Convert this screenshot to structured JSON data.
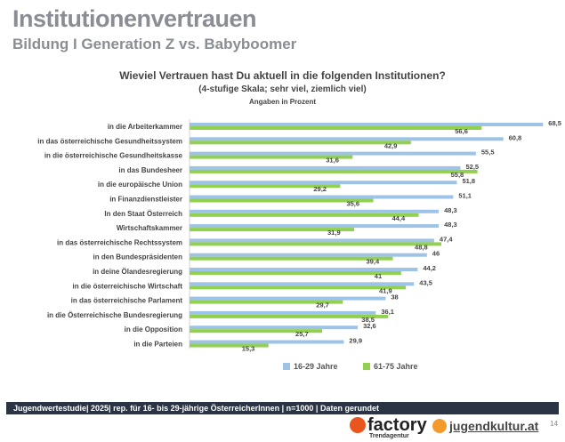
{
  "header": {
    "title": "Institutionenvertrauen",
    "subtitle": "Bildung I Generation Z vs. Babyboomer"
  },
  "chart_data": {
    "type": "bar",
    "orientation": "horizontal",
    "title": "Wieviel Vertrauen hast Du aktuell in die folgenden Institutionen?",
    "subtitle": "(4-stufige Skala; sehr viel, ziemlich viel)",
    "unit_note": "Angaben in Prozent",
    "categories": [
      "in die Arbeiterkammer",
      "in das österreichische Gesundheitssystem",
      "in die österreichische Gesundheitskasse",
      "in das Bundesheer",
      "in die europäische Union",
      "in Finanzdienstleister",
      "In den Staat Österreich",
      "Wirtschaftskammer",
      "in das österreichische Rechtssystem",
      "in den Bundespräsidenten",
      "in deine Ölandesregierung",
      "in die österreichische Wirtschaft",
      "in das österreichische Parlament",
      "in die Österreichische Bundesregierung",
      "in die Opposition",
      "in die Parteien"
    ],
    "series": [
      {
        "name": "16-29 Jahre",
        "color": "#9dc3e6",
        "values": [
          68.5,
          60.8,
          55.5,
          52.5,
          51.8,
          51.1,
          48.3,
          48.3,
          47.4,
          46,
          44.2,
          43.5,
          38,
          36.1,
          32.6,
          29.9
        ],
        "labels": [
          "68,5",
          "60,8",
          "55,5",
          "52,5",
          "51,8",
          "51,1",
          "48,3",
          "48,3",
          "47,4",
          "46",
          "44,2",
          "43,5",
          "38",
          "36,1",
          "32,6",
          "29,9"
        ]
      },
      {
        "name": "61-75 Jahre",
        "color": "#92d050",
        "values": [
          56.6,
          42.9,
          31.6,
          55.8,
          29.2,
          35.6,
          44.4,
          31.9,
          48.8,
          39.4,
          41,
          41.9,
          29.7,
          38.5,
          25.7,
          15.3
        ],
        "labels": [
          "56,6",
          "42,9",
          "31,6",
          "55,8",
          "29,2",
          "35,6",
          "44,4",
          "31,9",
          "48,8",
          "39,4",
          "41",
          "41,9",
          "29,7",
          "38,5",
          "25,7",
          "15,3"
        ]
      }
    ],
    "xlim": [
      0,
      70
    ],
    "legend": "bottom",
    "grid": false
  },
  "footer": {
    "text": "Jugendwertestudie| 2025| rep. für 16- bis 29-jährige ÖsterreicherInnen | n=1000 | Daten gerundet",
    "logo1": "factory",
    "logo1_sub": "Trendagentur",
    "logo2": "jugendkultur.at",
    "page": "14"
  }
}
